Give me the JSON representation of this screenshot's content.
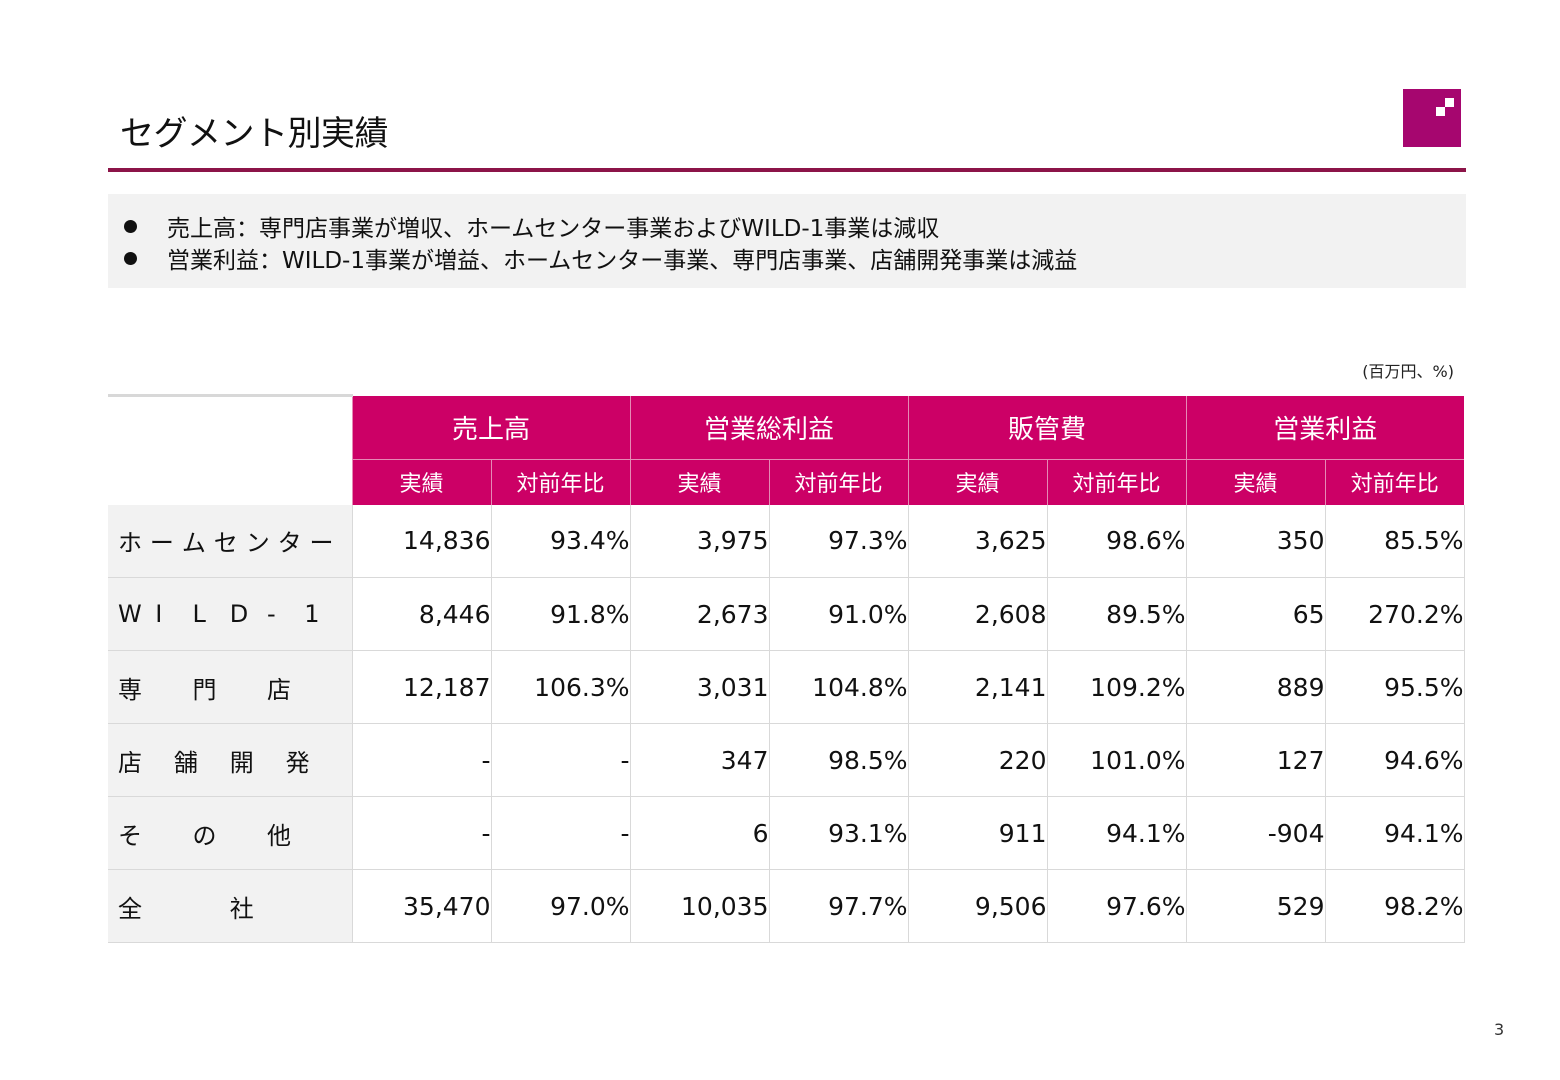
{
  "slide": {
    "title": "セグメント別実績",
    "page_number": "3",
    "accent_color": "#cc0066",
    "rule_color": "#8c1448",
    "logo_color": "#a6066f"
  },
  "summary": {
    "bullets": [
      "売上高：専門店事業が増収、ホームセンター事業およびWILD-1事業は減収",
      "営業利益：WILD-1事業が増益、ホームセンター事業、専門店事業、店舗開発事業は減益"
    ]
  },
  "table": {
    "unit": "(百万円、%)",
    "groups": [
      "売上高",
      "営業総利益",
      "販管費",
      "営業利益"
    ],
    "subheaders": [
      "実績",
      "対前年比"
    ],
    "rows": [
      {
        "label": [
          "ホ",
          "ー",
          "ム",
          "セ",
          "ン",
          "タ",
          "ー"
        ],
        "values": [
          "14,836",
          "93.4%",
          "3,975",
          "97.3%",
          "3,625",
          "98.6%",
          "350",
          "85.5%"
        ]
      },
      {
        "label": [
          "W",
          "I",
          "L",
          "D",
          "-",
          "1"
        ],
        "values": [
          "8,446",
          "91.8%",
          "2,673",
          "91.0%",
          "2,608",
          "89.5%",
          "65",
          "270.2%"
        ]
      },
      {
        "label": [
          "専",
          "門",
          "店"
        ],
        "values": [
          "12,187",
          "106.3%",
          "3,031",
          "104.8%",
          "2,141",
          "109.2%",
          "889",
          "95.5%"
        ]
      },
      {
        "label": [
          "店",
          "舗",
          "開",
          "発"
        ],
        "values": [
          "-",
          "-",
          "347",
          "98.5%",
          "220",
          "101.0%",
          "127",
          "94.6%"
        ]
      },
      {
        "label": [
          "そ",
          "の",
          "他"
        ],
        "values": [
          "-",
          "-",
          "6",
          "93.1%",
          "911",
          "94.1%",
          "-904",
          "94.1%"
        ]
      },
      {
        "label": [
          "全",
          "社"
        ],
        "values": [
          "35,470",
          "97.0%",
          "10,035",
          "97.7%",
          "9,506",
          "97.6%",
          "529",
          "98.2%"
        ]
      }
    ]
  }
}
